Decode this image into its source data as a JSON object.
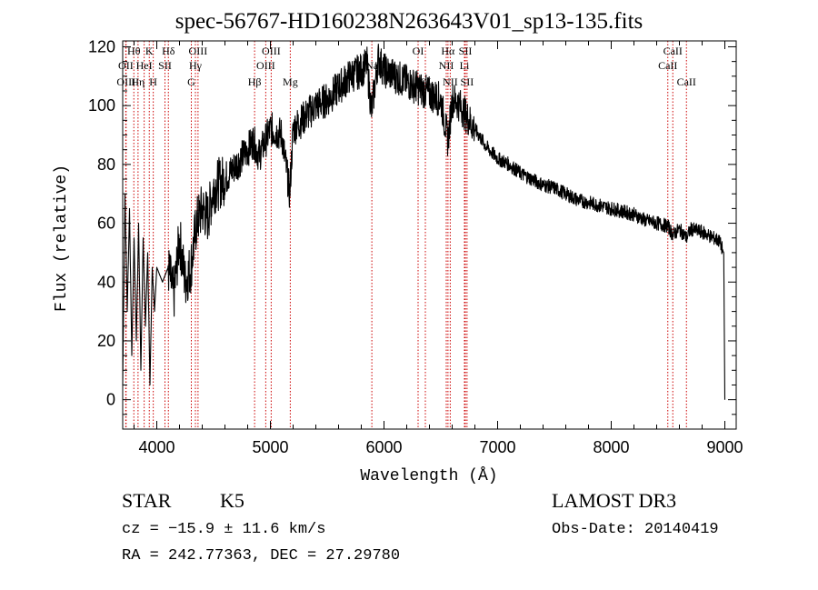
{
  "title": "spec-56767-HD160238N263643V01_sp13-135.fits",
  "info": {
    "obj_class": "STAR",
    "subclass": "K5",
    "survey": "LAMOST DR3",
    "cz": "cz = −15.9 ± 11.6 km/s",
    "obs_date": "Obs-Date: 20140419",
    "radec": "RA = 242.77363, DEC =  27.29780"
  },
  "chart_data": {
    "type": "line",
    "title": "spec-56767-HD160238N263643V01_sp13-135.fits",
    "xlabel": "Wavelength (Å)",
    "ylabel": "Flux (relative)",
    "xlim": [
      3700,
      9100
    ],
    "ylim": [
      -10,
      122
    ],
    "xticks": [
      4000,
      5000,
      6000,
      7000,
      8000,
      9000
    ],
    "yticks": [
      0,
      20,
      40,
      60,
      80,
      100,
      120
    ],
    "grid": false,
    "line_color": "#000000",
    "marker_color": "#cc0000",
    "series": [
      {
        "name": "flux",
        "x": [
          3700,
          3720,
          3740,
          3760,
          3780,
          3800,
          3820,
          3840,
          3860,
          3880,
          3900,
          3920,
          3940,
          3960,
          3980,
          4000,
          4050,
          4100,
          4150,
          4200,
          4250,
          4300,
          4350,
          4400,
          4450,
          4500,
          4600,
          4700,
          4800,
          4850,
          4900,
          5000,
          5100,
          5170,
          5200,
          5300,
          5400,
          5500,
          5600,
          5700,
          5800,
          5850,
          5890,
          5950,
          6000,
          6100,
          6200,
          6300,
          6400,
          6500,
          6563,
          6600,
          6650,
          6700,
          6800,
          6900,
          7000,
          7100,
          7200,
          7300,
          7400,
          7500,
          7600,
          7700,
          7800,
          7900,
          8000,
          8100,
          8200,
          8300,
          8400,
          8500,
          8542,
          8600,
          8662,
          8700,
          8800,
          8900,
          8950,
          8990,
          9000
        ],
        "y": [
          5,
          70,
          30,
          65,
          15,
          55,
          20,
          60,
          10,
          55,
          25,
          50,
          5,
          45,
          30,
          45,
          40,
          45,
          35,
          55,
          40,
          45,
          60,
          65,
          62,
          72,
          75,
          80,
          85,
          88,
          83,
          92,
          90,
          70,
          92,
          96,
          100,
          102,
          106,
          110,
          112,
          114,
          98,
          116,
          112,
          110,
          108,
          106,
          104,
          102,
          88,
          102,
          101,
          98,
          92,
          86,
          82,
          80,
          77,
          75,
          73,
          72,
          70,
          68,
          67,
          66,
          65,
          64,
          63,
          61,
          60,
          59,
          56,
          58,
          55,
          58,
          57,
          55,
          54,
          50,
          0
        ]
      }
    ],
    "lines": [
      {
        "name": "OII",
        "wave": 3727,
        "row": 1
      },
      {
        "name": "OIII",
        "wave": 3730,
        "row": 2
      },
      {
        "name": "Hθ",
        "wave": 3798,
        "row": 0
      },
      {
        "name": "Hη",
        "wave": 3835,
        "row": 2
      },
      {
        "name": "HeI",
        "wave": 3889,
        "row": 1
      },
      {
        "name": "K",
        "wave": 3934,
        "row": 0
      },
      {
        "name": "H",
        "wave": 3969,
        "row": 2
      },
      {
        "name": "SII",
        "wave": 4072,
        "row": 1
      },
      {
        "name": "Hδ",
        "wave": 4102,
        "row": 0
      },
      {
        "name": "G",
        "wave": 4304,
        "row": 2
      },
      {
        "name": "Hγ",
        "wave": 4340,
        "row": 1
      },
      {
        "name": "OIII",
        "wave": 4363,
        "row": 0
      },
      {
        "name": "Hβ",
        "wave": 4861,
        "row": 2
      },
      {
        "name": "OIII",
        "wave": 4959,
        "row": 1
      },
      {
        "name": "OIII",
        "wave": 5007,
        "row": 0
      },
      {
        "name": "Mg",
        "wave": 5175,
        "row": 2
      },
      {
        "name": "Na",
        "wave": 5893,
        "row": 1
      },
      {
        "name": "OI",
        "wave": 6300,
        "row": 0
      },
      {
        "name": "OI",
        "wave": 6364,
        "row": 2
      },
      {
        "name": "NII",
        "wave": 6548,
        "row": 1
      },
      {
        "name": "Hα",
        "wave": 6563,
        "row": 0
      },
      {
        "name": "NII",
        "wave": 6583,
        "row": 2
      },
      {
        "name": "Li",
        "wave": 6708,
        "row": 1
      },
      {
        "name": "SII",
        "wave": 6716,
        "row": 0
      },
      {
        "name": "SII",
        "wave": 6731,
        "row": 2
      },
      {
        "name": "CaII",
        "wave": 8498,
        "row": 1
      },
      {
        "name": "CaII",
        "wave": 8542,
        "row": 0
      },
      {
        "name": "CaII",
        "wave": 8662,
        "row": 2
      }
    ]
  }
}
